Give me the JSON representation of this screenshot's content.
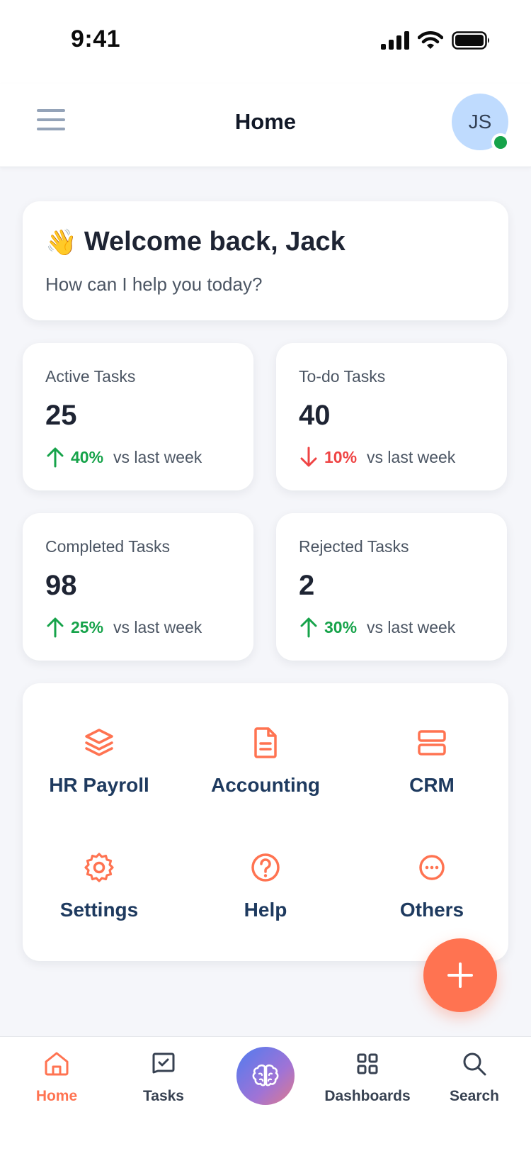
{
  "status_bar": {
    "time": "9:41"
  },
  "header": {
    "title": "Home",
    "avatar_initials": "JS"
  },
  "welcome": {
    "emoji": "👋",
    "title": "Welcome back, Jack",
    "subtitle": "How can I help you today?"
  },
  "stats": [
    {
      "label": "Active Tasks",
      "value": "25",
      "direction": "up",
      "change": "40%",
      "comparison": "vs last week"
    },
    {
      "label": "To-do Tasks",
      "value": "40",
      "direction": "down",
      "change": "10%",
      "comparison": "vs last week"
    },
    {
      "label": "Completed Tasks",
      "value": "98",
      "direction": "up",
      "change": "25%",
      "comparison": "vs last week"
    },
    {
      "label": "Rejected Tasks",
      "value": "2",
      "direction": "up",
      "change": "30%",
      "comparison": "vs last week"
    }
  ],
  "apps": [
    {
      "label": "HR Payroll",
      "icon": "layers-icon"
    },
    {
      "label": "Accounting",
      "icon": "document-icon"
    },
    {
      "label": "CRM",
      "icon": "server-icon"
    },
    {
      "label": "Settings",
      "icon": "gear-icon"
    },
    {
      "label": "Help",
      "icon": "help-circle-icon"
    },
    {
      "label": "Others",
      "icon": "more-circle-icon"
    }
  ],
  "bottom_nav": [
    {
      "label": "Home",
      "icon": "home-icon",
      "active": true
    },
    {
      "label": "Tasks",
      "icon": "tasks-icon",
      "active": false
    },
    {
      "label": "",
      "icon": "brain-icon",
      "active": false
    },
    {
      "label": "Dashboards",
      "icon": "grid-icon",
      "active": false
    },
    {
      "label": "Search",
      "icon": "search-icon",
      "active": false
    }
  ],
  "colors": {
    "accent": "#ff7351",
    "up": "#16a34a",
    "down": "#ef4444",
    "app_label": "#1e3a5f",
    "background": "#f5f6fa"
  }
}
